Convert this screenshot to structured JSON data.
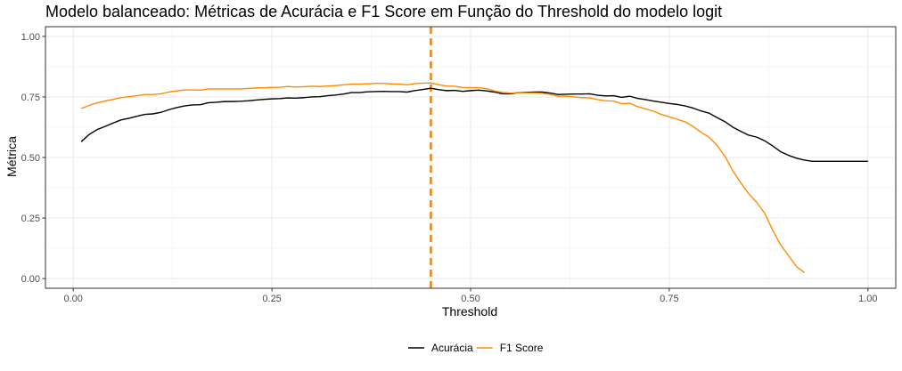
{
  "chart_data": {
    "type": "line",
    "title": "Modelo balanceado: Métricas de Acurácia e F1 Score em Função do Threshold do modelo logit",
    "xlabel": "Threshold",
    "ylabel": "Métrica",
    "xlim": [
      -0.035,
      1.035
    ],
    "ylim": [
      -0.04,
      1.04
    ],
    "x_ticks": [
      0.0,
      0.25,
      0.5,
      0.75,
      1.0
    ],
    "x_tick_labels": [
      "0.00",
      "0.25",
      "0.50",
      "0.75",
      "1.00"
    ],
    "y_ticks": [
      0.0,
      0.25,
      0.5,
      0.75,
      1.0
    ],
    "y_tick_labels": [
      "0.00",
      "0.25",
      "0.50",
      "0.75",
      "1.00"
    ],
    "grid": true,
    "legend_position": "bottom",
    "vline": {
      "x": 0.45,
      "color": "#E08B1F",
      "style": "dashed"
    },
    "series": [
      {
        "name": "Acurácia",
        "color": "#000000",
        "x": [
          0.01,
          0.02,
          0.03,
          0.04,
          0.05,
          0.06,
          0.07,
          0.08,
          0.09,
          0.1,
          0.11,
          0.12,
          0.13,
          0.14,
          0.15,
          0.16,
          0.17,
          0.18,
          0.19,
          0.2,
          0.21,
          0.22,
          0.23,
          0.24,
          0.25,
          0.26,
          0.27,
          0.28,
          0.29,
          0.3,
          0.31,
          0.32,
          0.33,
          0.34,
          0.35,
          0.36,
          0.37,
          0.38,
          0.39,
          0.4,
          0.41,
          0.42,
          0.43,
          0.44,
          0.45,
          0.46,
          0.47,
          0.48,
          0.49,
          0.5,
          0.51,
          0.52,
          0.53,
          0.54,
          0.55,
          0.56,
          0.57,
          0.58,
          0.59,
          0.6,
          0.61,
          0.62,
          0.63,
          0.64,
          0.65,
          0.66,
          0.67,
          0.68,
          0.69,
          0.7,
          0.71,
          0.72,
          0.73,
          0.74,
          0.75,
          0.76,
          0.77,
          0.78,
          0.79,
          0.8,
          0.81,
          0.82,
          0.83,
          0.84,
          0.85,
          0.86,
          0.87,
          0.88,
          0.89,
          0.9,
          0.91,
          0.92,
          0.93,
          0.94,
          0.95,
          0.96,
          0.97,
          0.98,
          0.99,
          1.0
        ],
        "y": [
          0.565,
          0.595,
          0.615,
          0.628,
          0.642,
          0.655,
          0.662,
          0.67,
          0.678,
          0.68,
          0.686,
          0.697,
          0.706,
          0.713,
          0.717,
          0.718,
          0.726,
          0.728,
          0.731,
          0.731,
          0.732,
          0.734,
          0.737,
          0.74,
          0.742,
          0.743,
          0.746,
          0.745,
          0.747,
          0.75,
          0.751,
          0.755,
          0.758,
          0.762,
          0.768,
          0.768,
          0.771,
          0.772,
          0.773,
          0.772,
          0.772,
          0.77,
          0.776,
          0.781,
          0.786,
          0.78,
          0.776,
          0.777,
          0.773,
          0.776,
          0.778,
          0.775,
          0.77,
          0.763,
          0.763,
          0.768,
          0.769,
          0.77,
          0.77,
          0.766,
          0.76,
          0.761,
          0.762,
          0.762,
          0.763,
          0.757,
          0.754,
          0.755,
          0.748,
          0.753,
          0.744,
          0.739,
          0.733,
          0.728,
          0.723,
          0.719,
          0.713,
          0.704,
          0.692,
          0.683,
          0.665,
          0.648,
          0.625,
          0.608,
          0.592,
          0.584,
          0.569,
          0.548,
          0.524,
          0.509,
          0.497,
          0.489,
          0.484,
          0.484,
          0.484,
          0.484,
          0.484,
          0.484,
          0.484,
          0.484
        ]
      },
      {
        "name": "F1 Score",
        "color": "#FF8C00",
        "x": [
          0.01,
          0.02,
          0.03,
          0.04,
          0.05,
          0.06,
          0.07,
          0.08,
          0.09,
          0.1,
          0.11,
          0.12,
          0.13,
          0.14,
          0.15,
          0.16,
          0.17,
          0.18,
          0.19,
          0.2,
          0.21,
          0.22,
          0.23,
          0.24,
          0.25,
          0.26,
          0.27,
          0.28,
          0.29,
          0.3,
          0.31,
          0.32,
          0.33,
          0.34,
          0.35,
          0.36,
          0.37,
          0.38,
          0.39,
          0.4,
          0.41,
          0.42,
          0.43,
          0.44,
          0.45,
          0.46,
          0.47,
          0.48,
          0.49,
          0.5,
          0.51,
          0.52,
          0.53,
          0.54,
          0.55,
          0.56,
          0.57,
          0.58,
          0.59,
          0.6,
          0.61,
          0.62,
          0.63,
          0.64,
          0.65,
          0.66,
          0.67,
          0.68,
          0.69,
          0.7,
          0.71,
          0.72,
          0.73,
          0.74,
          0.75,
          0.76,
          0.77,
          0.78,
          0.79,
          0.8,
          0.81,
          0.82,
          0.83,
          0.84,
          0.85,
          0.86,
          0.87,
          0.88,
          0.89,
          0.9,
          0.91,
          0.92
        ],
        "y": [
          0.702,
          0.715,
          0.726,
          0.733,
          0.74,
          0.747,
          0.751,
          0.755,
          0.76,
          0.76,
          0.763,
          0.77,
          0.775,
          0.779,
          0.779,
          0.778,
          0.783,
          0.783,
          0.783,
          0.783,
          0.783,
          0.785,
          0.787,
          0.788,
          0.789,
          0.79,
          0.793,
          0.791,
          0.792,
          0.794,
          0.793,
          0.795,
          0.797,
          0.8,
          0.803,
          0.803,
          0.804,
          0.806,
          0.806,
          0.804,
          0.803,
          0.8,
          0.805,
          0.807,
          0.808,
          0.8,
          0.795,
          0.794,
          0.789,
          0.788,
          0.788,
          0.784,
          0.775,
          0.769,
          0.766,
          0.768,
          0.767,
          0.767,
          0.765,
          0.76,
          0.753,
          0.753,
          0.75,
          0.747,
          0.746,
          0.739,
          0.734,
          0.733,
          0.722,
          0.724,
          0.71,
          0.701,
          0.691,
          0.678,
          0.668,
          0.658,
          0.647,
          0.628,
          0.604,
          0.584,
          0.55,
          0.505,
          0.445,
          0.395,
          0.35,
          0.315,
          0.27,
          0.2,
          0.14,
          0.095,
          0.05,
          0.025
        ]
      }
    ]
  }
}
